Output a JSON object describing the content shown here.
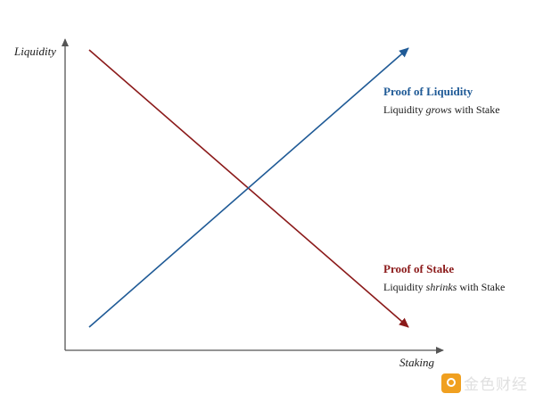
{
  "axes": {
    "y_label": "Liquidity",
    "x_label": "Staking"
  },
  "proof_of_liquidity": {
    "title": "Proof of Liquidity",
    "desc_prefix": "Liquidity ",
    "desc_emph": "grows",
    "desc_suffix": " with Stake",
    "color": "#1f5a96"
  },
  "proof_of_stake": {
    "title": "Proof of Stake",
    "desc_prefix": "Liquidity ",
    "desc_emph": "shrinks",
    "desc_suffix": " with Stake",
    "color": "#8b1a1a"
  },
  "watermark": {
    "text": "金色财经",
    "icon": "gold-coin-logo-icon"
  }
}
